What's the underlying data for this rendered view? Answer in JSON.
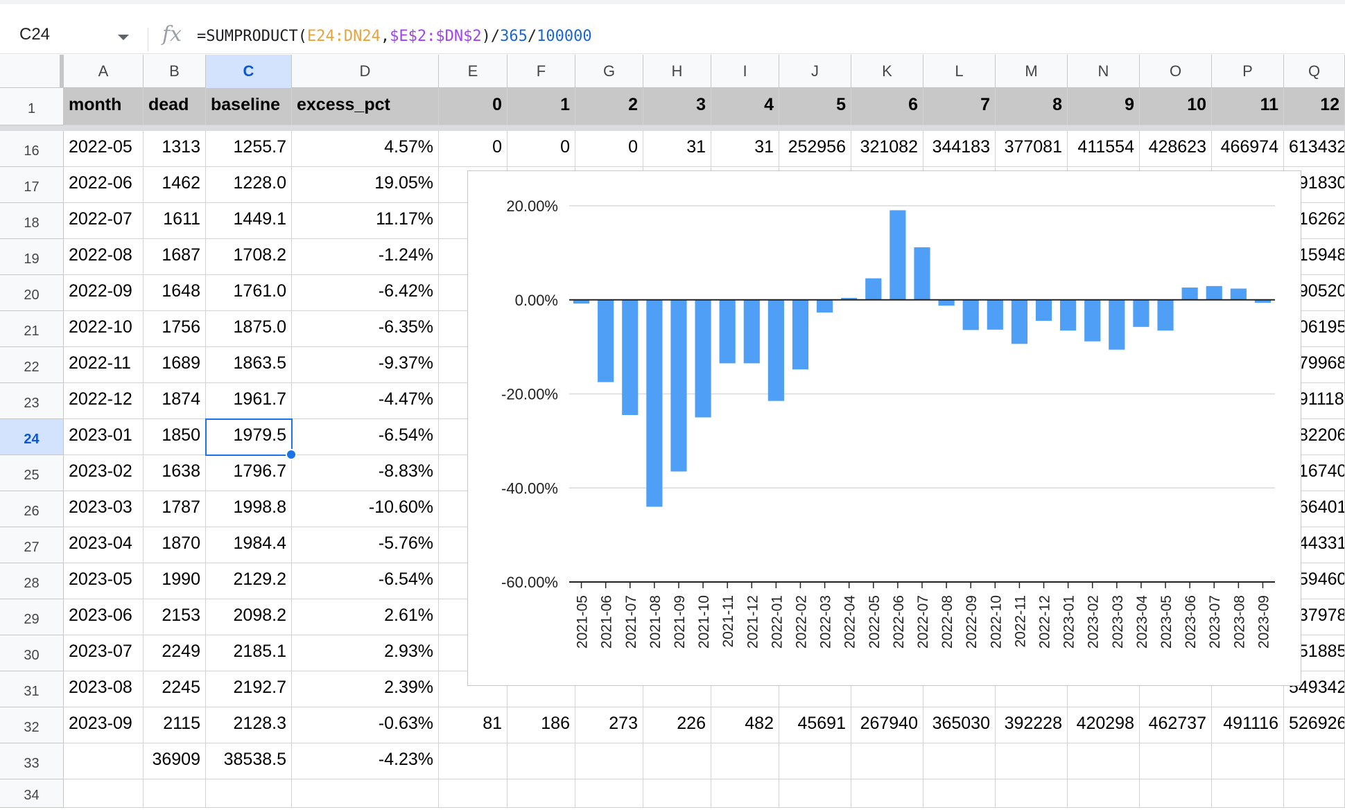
{
  "formula_bar": {
    "name_box": "C24",
    "fx": "fx",
    "formula_parts": [
      {
        "text": "=SUMPRODUCT(",
        "color": "#202124"
      },
      {
        "text": "E24:DN24",
        "color": "#e8a33c"
      },
      {
        "text": ",",
        "color": "#202124"
      },
      {
        "text": "$E$2:$DN$2",
        "color": "#a142f4"
      },
      {
        "text": ")/",
        "color": "#202124"
      },
      {
        "text": "365",
        "color": "#1967d2"
      },
      {
        "text": "/",
        "color": "#202124"
      },
      {
        "text": "100000",
        "color": "#1967d2"
      }
    ]
  },
  "columns": [
    "A",
    "B",
    "C",
    "D",
    "E",
    "F",
    "G",
    "H",
    "I",
    "J",
    "K",
    "L",
    "M",
    "N",
    "O",
    "P",
    "Q"
  ],
  "selected_column": "C",
  "header_row": {
    "row": "1",
    "cells": [
      "month",
      "dead",
      "baseline",
      "excess_pct",
      "0",
      "1",
      "2",
      "3",
      "4",
      "5",
      "6",
      "7",
      "8",
      "9",
      "10",
      "11",
      "12"
    ]
  },
  "rows": [
    {
      "row": "16",
      "cells": [
        "2022-05",
        "1313",
        "1255.7",
        "4.57%",
        "0",
        "0",
        "0",
        "31",
        "31",
        "252956",
        "321082",
        "344183",
        "377081",
        "411554",
        "428623",
        "466974",
        "613432"
      ]
    },
    {
      "row": "17",
      "cells": [
        "2022-06",
        "1462",
        "1228.0",
        "19.05%",
        "",
        "",
        "",
        "",
        "",
        "",
        "",
        "",
        "",
        "",
        "",
        "",
        "591830"
      ]
    },
    {
      "row": "18",
      "cells": [
        "2022-07",
        "1611",
        "1449.1",
        "11.17%",
        "",
        "",
        "",
        "",
        "",
        "",
        "",
        "",
        "",
        "",
        "",
        "",
        "516262"
      ]
    },
    {
      "row": "19",
      "cells": [
        "2022-08",
        "1687",
        "1708.2",
        "-1.24%",
        "",
        "",
        "",
        "",
        "",
        "",
        "",
        "",
        "",
        "",
        "",
        "",
        "515948"
      ]
    },
    {
      "row": "20",
      "cells": [
        "2022-09",
        "1648",
        "1761.0",
        "-6.42%",
        "",
        "",
        "",
        "",
        "",
        "",
        "",
        "",
        "",
        "",
        "",
        "",
        "490520"
      ]
    },
    {
      "row": "21",
      "cells": [
        "2022-10",
        "1756",
        "1875.0",
        "-6.35%",
        "",
        "",
        "",
        "",
        "",
        "",
        "",
        "",
        "",
        "",
        "",
        "",
        "506195"
      ]
    },
    {
      "row": "22",
      "cells": [
        "2022-11",
        "1689",
        "1863.5",
        "-9.37%",
        "",
        "",
        "",
        "",
        "",
        "",
        "",
        "",
        "",
        "",
        "",
        "",
        "479968"
      ]
    },
    {
      "row": "23",
      "cells": [
        "2022-12",
        "1874",
        "1961.7",
        "-4.47%",
        "",
        "",
        "",
        "",
        "",
        "",
        "",
        "",
        "",
        "",
        "",
        "",
        "491118"
      ]
    },
    {
      "row": "24",
      "cells": [
        "2023-01",
        "1850",
        "1979.5",
        "-6.54%",
        "",
        "",
        "",
        "",
        "",
        "",
        "",
        "",
        "",
        "",
        "",
        "",
        "482206"
      ]
    },
    {
      "row": "25",
      "cells": [
        "2023-02",
        "1638",
        "1796.7",
        "-8.83%",
        "",
        "",
        "",
        "",
        "",
        "",
        "",
        "",
        "",
        "",
        "",
        "",
        "516740"
      ]
    },
    {
      "row": "26",
      "cells": [
        "2023-03",
        "1787",
        "1998.8",
        "-10.60%",
        "",
        "",
        "",
        "",
        "",
        "",
        "",
        "",
        "",
        "",
        "",
        "",
        "566401"
      ]
    },
    {
      "row": "27",
      "cells": [
        "2023-04",
        "1870",
        "1984.4",
        "-5.76%",
        "",
        "",
        "",
        "",
        "",
        "",
        "",
        "",
        "",
        "",
        "",
        "",
        "544331"
      ]
    },
    {
      "row": "28",
      "cells": [
        "2023-05",
        "1990",
        "2129.2",
        "-6.54%",
        "",
        "",
        "",
        "",
        "",
        "",
        "",
        "",
        "",
        "",
        "",
        "",
        "559460"
      ]
    },
    {
      "row": "29",
      "cells": [
        "2023-06",
        "2153",
        "2098.2",
        "2.61%",
        "",
        "",
        "",
        "",
        "",
        "",
        "",
        "",
        "",
        "",
        "",
        "",
        "537978"
      ]
    },
    {
      "row": "30",
      "cells": [
        "2023-07",
        "2249",
        "2185.1",
        "2.93%",
        "",
        "",
        "",
        "",
        "",
        "",
        "",
        "",
        "",
        "",
        "",
        "",
        "551885"
      ]
    },
    {
      "row": "31",
      "cells": [
        "2023-08",
        "2245",
        "2192.7",
        "2.39%",
        "",
        "",
        "",
        "",
        "",
        "",
        "",
        "",
        "",
        "",
        "",
        "",
        "549342"
      ]
    },
    {
      "row": "32",
      "cells": [
        "2023-09",
        "2115",
        "2128.3",
        "-0.63%",
        "81",
        "186",
        "273",
        "226",
        "482",
        "45691",
        "267940",
        "365030",
        "392228",
        "420298",
        "462737",
        "491116",
        "526926"
      ]
    },
    {
      "row": "33",
      "cells": [
        "",
        "36909",
        "38538.5",
        "-4.23%",
        "",
        "",
        "",
        "",
        "",
        "",
        "",
        "",
        "",
        "",
        "",
        "",
        ""
      ]
    },
    {
      "row": "34",
      "cells": [
        "",
        "",
        "",
        "",
        "",
        "",
        "",
        "",
        "",
        "",
        "",
        "",
        "",
        "",
        "",
        "",
        ""
      ]
    }
  ],
  "selected_cell": {
    "row": "24",
    "col": "C"
  },
  "chart_data": {
    "type": "bar",
    "categories": [
      "2021-05",
      "2021-06",
      "2021-07",
      "2021-08",
      "2021-09",
      "2021-10",
      "2021-11",
      "2021-12",
      "2022-01",
      "2022-02",
      "2022-03",
      "2022-04",
      "2022-05",
      "2022-06",
      "2022-07",
      "2022-08",
      "2022-09",
      "2022-10",
      "2022-11",
      "2022-12",
      "2023-01",
      "2023-02",
      "2023-03",
      "2023-04",
      "2023-05",
      "2023-06",
      "2023-07",
      "2023-08",
      "2023-09"
    ],
    "values": [
      -0.8,
      -17.5,
      -24.5,
      -44,
      -36.5,
      -25,
      -13.5,
      -13.5,
      -21.5,
      -14.8,
      -2.7,
      0.4,
      4.57,
      19.05,
      11.17,
      -1.24,
      -6.42,
      -6.35,
      -9.37,
      -4.47,
      -6.54,
      -8.83,
      -10.6,
      -5.76,
      -6.54,
      2.61,
      2.93,
      2.39,
      -0.63
    ],
    "ylim": [
      -60,
      20
    ],
    "yticks": [
      "20.00%",
      "0.00%",
      "-20.00%",
      "-40.00%",
      "-60.00%"
    ],
    "ytick_values": [
      20,
      0,
      -20,
      -40,
      -60
    ],
    "bar_color": "#4e9ff5",
    "grid": true
  }
}
